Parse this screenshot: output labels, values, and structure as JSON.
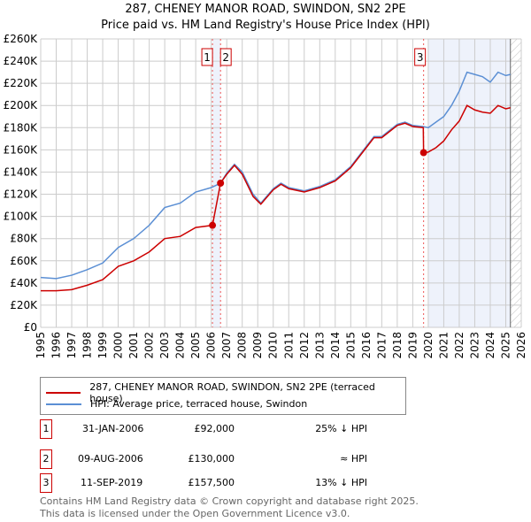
{
  "chart_data": {
    "type": "line",
    "title": "287, CHENEY MANOR ROAD, SWINDON, SN2 2PE",
    "subtitle": "Price paid vs. HM Land Registry's House Price Index (HPI)",
    "xlim": [
      1995,
      2026
    ],
    "ylim": [
      0,
      260000
    ],
    "x_ticks": [
      "1995",
      "1996",
      "1997",
      "1998",
      "1999",
      "2000",
      "2001",
      "2002",
      "2003",
      "2004",
      "2005",
      "2006",
      "2007",
      "2008",
      "2009",
      "2010",
      "2011",
      "2012",
      "2013",
      "2014",
      "2015",
      "2016",
      "2017",
      "2018",
      "2019",
      "2020",
      "2021",
      "2022",
      "2023",
      "2024",
      "2025",
      "2026"
    ],
    "y_ticks": [
      "£0",
      "£20K",
      "£40K",
      "£60K",
      "£80K",
      "£100K",
      "£120K",
      "£140K",
      "£160K",
      "£180K",
      "£200K",
      "£220K",
      "£240K",
      "£260K"
    ],
    "grid": true,
    "series": [
      {
        "name": "287, CHENEY MANOR ROAD, SWINDON, SN2 2PE (terraced house)",
        "color": "#cc0000",
        "x": [
          1995,
          1996,
          1997,
          1998,
          1999,
          2000,
          2001,
          2002,
          2003,
          2004,
          2005,
          2006.08,
          2006.6,
          2007,
          2007.5,
          2008,
          2008.7,
          2009.2,
          2010,
          2010.5,
          2011,
          2012,
          2013,
          2014,
          2015,
          2016,
          2016.5,
          2017,
          2018,
          2018.5,
          2019,
          2019.68,
          2019.7,
          2020,
          2020.5,
          2021,
          2021.5,
          2022,
          2022.5,
          2023,
          2023.5,
          2024,
          2024.5,
          2025,
          2025.3
        ],
        "y": [
          33000,
          33000,
          34000,
          38000,
          43000,
          55000,
          60000,
          68000,
          80000,
          82000,
          90000,
          92000,
          130000,
          138000,
          146000,
          138000,
          118000,
          111000,
          124000,
          129000,
          125000,
          122000,
          126000,
          132000,
          144000,
          162000,
          171000,
          171000,
          182000,
          184000,
          181000,
          180000,
          157500,
          158000,
          162000,
          168000,
          178000,
          186000,
          200000,
          196000,
          194000,
          193000,
          200000,
          197000,
          198000
        ]
      },
      {
        "name": "HPI: Average price, terraced house, Swindon",
        "color": "#5b8fd4",
        "x": [
          1995,
          1996,
          1997,
          1998,
          1999,
          2000,
          2001,
          2002,
          2003,
          2004,
          2005,
          2006,
          2006.6,
          2007,
          2007.5,
          2008,
          2008.7,
          2009.2,
          2010,
          2010.5,
          2011,
          2012,
          2013,
          2014,
          2015,
          2016,
          2016.5,
          2017,
          2018,
          2018.5,
          2019,
          2019.7,
          2020,
          2020.5,
          2021,
          2021.5,
          2022,
          2022.5,
          2023,
          2023.5,
          2024,
          2024.5,
          2025,
          2025.3
        ],
        "y": [
          45000,
          44000,
          47000,
          52000,
          58000,
          72000,
          80000,
          92000,
          108000,
          112000,
          122000,
          126000,
          130000,
          139000,
          147000,
          140000,
          120000,
          112000,
          125000,
          130000,
          126000,
          123000,
          127000,
          133000,
          145000,
          163000,
          172000,
          172000,
          183000,
          185000,
          182000,
          181000,
          180000,
          185000,
          190000,
          200000,
          213000,
          230000,
          228000,
          226000,
          221000,
          230000,
          227000,
          228000
        ]
      }
    ],
    "sales": [
      {
        "label": "1",
        "x": 2006.08,
        "y": 92000,
        "date": "31-JAN-2006",
        "price": "£92,000",
        "hpi": "25% ↓ HPI"
      },
      {
        "label": "2",
        "x": 2006.6,
        "y": 130000,
        "date": "09-AUG-2006",
        "price": "£130,000",
        "hpi": "≈ HPI"
      },
      {
        "label": "3",
        "x": 2019.7,
        "y": 157500,
        "date": "11-SEP-2019",
        "price": "£157,500",
        "hpi": "13% ↓ HPI"
      }
    ],
    "shaded": [
      [
        2006.08,
        2006.6
      ],
      [
        2020,
        2025.3
      ]
    ],
    "hatched_from": 2025.3
  },
  "footer": [
    "Contains HM Land Registry data © Crown copyright and database right 2025.",
    "This data is licensed under the Open Government Licence v3.0."
  ]
}
